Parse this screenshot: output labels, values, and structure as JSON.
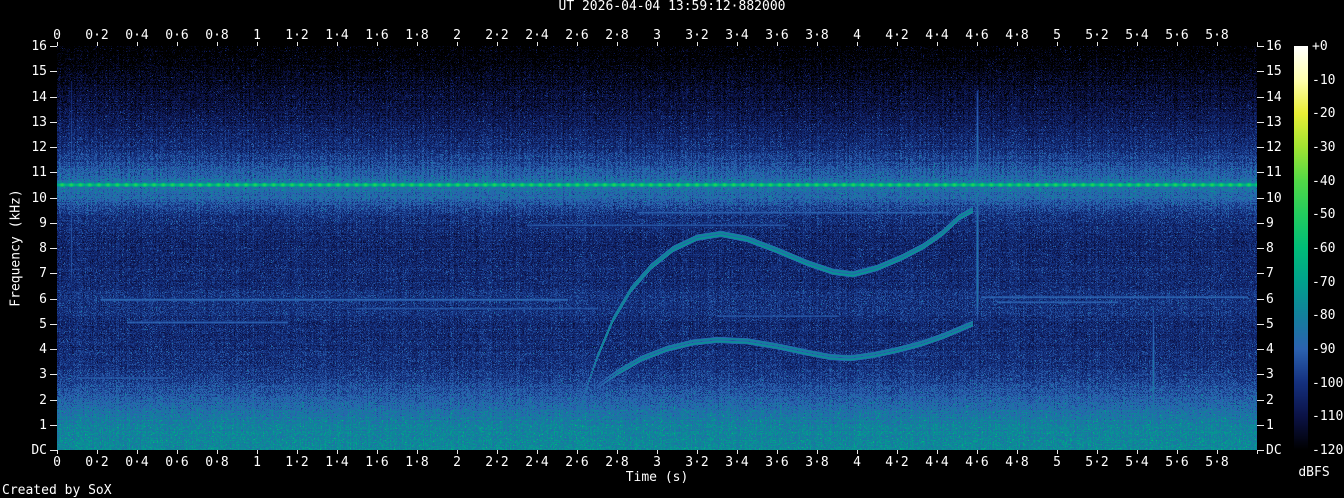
{
  "title": "UT 2026-04-04 13:59:12·882000",
  "footer": "Created by SoX",
  "axes": {
    "time": {
      "label": "Time (s)",
      "min": 0,
      "max": 6,
      "tick_step": 0.2,
      "tick_labels": [
        "0",
        "0·2",
        "0·4",
        "0·6",
        "0·8",
        "1",
        "1·2",
        "1·4",
        "1·6",
        "1·8",
        "2",
        "2·2",
        "2·4",
        "2·6",
        "2·8",
        "3",
        "3·2",
        "3·4",
        "3·6",
        "3·8",
        "4",
        "4·2",
        "4·4",
        "4·6",
        "4·8",
        "5",
        "5·2",
        "5·4",
        "5·6",
        "5·8"
      ]
    },
    "freq": {
      "label": "Frequency (kHz)",
      "min": 0,
      "max": 16,
      "tick_step": 1,
      "tick_labels": [
        "16",
        "15",
        "14",
        "13",
        "12",
        "11",
        "10",
        "9",
        "8",
        "7",
        "6",
        "5",
        "4",
        "3",
        "2",
        "1",
        "DC"
      ]
    },
    "colorbar": {
      "label": "dBFS",
      "min": -120,
      "max": 0,
      "tick_step": 10,
      "tick_labels": [
        "+0",
        "-10",
        "-20",
        "-30",
        "-40",
        "-50",
        "-60",
        "-70",
        "-80",
        "-90",
        "-100",
        "-110",
        "-120"
      ]
    }
  },
  "chart_data": {
    "type": "heatmap",
    "title": "UT 2026-04-04 13:59:12·882000",
    "xlabel": "Time (s)",
    "ylabel": "Frequency (kHz)",
    "zlabel": "dBFS",
    "xlim": [
      0,
      6
    ],
    "ylim": [
      0,
      16
    ],
    "zlim": [
      -120,
      0
    ],
    "palette_db_hex": [
      [
        -120,
        "#000000"
      ],
      [
        -110,
        "#0b1246"
      ],
      [
        -100,
        "#14307e"
      ],
      [
        -90,
        "#2b62b0"
      ],
      [
        -80,
        "#12809c"
      ],
      [
        -70,
        "#00a18c"
      ],
      [
        -60,
        "#00bd78"
      ],
      [
        -50,
        "#22cc5e"
      ],
      [
        -40,
        "#52d846"
      ],
      [
        -30,
        "#a2e432"
      ],
      [
        -20,
        "#e9ee36"
      ],
      [
        -10,
        "#ffffb0"
      ],
      [
        0,
        "#ffffff"
      ]
    ],
    "background_profile_khz_db": [
      [
        0,
        -78
      ],
      [
        0.7,
        -79
      ],
      [
        1.2,
        -82
      ],
      [
        1.8,
        -88
      ],
      [
        2.4,
        -94
      ],
      [
        3,
        -99
      ],
      [
        4,
        -102
      ],
      [
        5,
        -102
      ],
      [
        5.9,
        -99
      ],
      [
        6.5,
        -102
      ],
      [
        7.5,
        -103
      ],
      [
        8.5,
        -103
      ],
      [
        9.3,
        -100
      ],
      [
        9.8,
        -94
      ],
      [
        10.2,
        -89
      ],
      [
        10.5,
        -86
      ],
      [
        10.8,
        -91
      ],
      [
        11.3,
        -97
      ],
      [
        12,
        -103
      ],
      [
        13,
        -108
      ],
      [
        14,
        -113
      ],
      [
        15,
        -118
      ],
      [
        16,
        -122
      ]
    ],
    "noise_jitter_db": 9,
    "features": {
      "pulse_train": {
        "freq_khz": 10.5,
        "period_s": 0.046,
        "peak_db": -48,
        "between_db": -66,
        "sideband_khz": 10.0,
        "sideband_peak_db": -82
      },
      "comb": {
        "khz_lo": 9.2,
        "khz_hi": 14.8,
        "boost_db": 6,
        "decay_khz": 2.2
      },
      "whistles": [
        {
          "db": -74,
          "points": [
            [
              2.6,
              1.3
            ],
            [
              2.7,
              3.6
            ],
            [
              2.78,
              5.1
            ],
            [
              2.87,
              6.3
            ],
            [
              2.97,
              7.2
            ],
            [
              3.08,
              7.9
            ],
            [
              3.2,
              8.35
            ],
            [
              3.32,
              8.5
            ],
            [
              3.45,
              8.3
            ],
            [
              3.6,
              7.85
            ],
            [
              3.75,
              7.35
            ],
            [
              3.88,
              7.0
            ],
            [
              3.98,
              6.9
            ],
            [
              4.1,
              7.15
            ],
            [
              4.22,
              7.55
            ],
            [
              4.33,
              8.0
            ],
            [
              4.43,
              8.55
            ],
            [
              4.51,
              9.15
            ],
            [
              4.58,
              9.45
            ]
          ]
        },
        {
          "db": -76,
          "points": [
            [
              2.7,
              2.45
            ],
            [
              2.8,
              3.0
            ],
            [
              2.92,
              3.55
            ],
            [
              3.05,
              3.95
            ],
            [
              3.18,
              4.2
            ],
            [
              3.3,
              4.3
            ],
            [
              3.45,
              4.25
            ],
            [
              3.6,
              4.05
            ],
            [
              3.75,
              3.8
            ],
            [
              3.87,
              3.62
            ],
            [
              3.97,
              3.58
            ],
            [
              4.08,
              3.7
            ],
            [
              4.2,
              3.9
            ],
            [
              4.32,
              4.15
            ],
            [
              4.43,
              4.45
            ],
            [
              4.52,
              4.75
            ],
            [
              4.58,
              4.95
            ]
          ]
        }
      ],
      "vertical_events": [
        {
          "t": 0.07,
          "khz_lo": 6.2,
          "khz_hi": 14.6,
          "db": -94
        },
        {
          "t": 4.6,
          "khz_lo": 5.1,
          "khz_hi": 14.2,
          "db": -84
        },
        {
          "t": 5.48,
          "khz_lo": 0.0,
          "khz_hi": 5.7,
          "db": -84
        }
      ],
      "streaks": [
        {
          "t0": 0.22,
          "t1": 2.55,
          "khz": 5.95,
          "db": -89
        },
        {
          "t0": 0.35,
          "t1": 1.15,
          "khz": 5.05,
          "db": -91
        },
        {
          "t0": 1.5,
          "t1": 2.7,
          "khz": 5.6,
          "db": -93
        },
        {
          "t0": 2.35,
          "t1": 3.65,
          "khz": 8.9,
          "db": -93
        },
        {
          "t0": 2.9,
          "t1": 4.45,
          "khz": 9.4,
          "db": -91
        },
        {
          "t0": 4.62,
          "t1": 5.95,
          "khz": 6.05,
          "db": -90
        },
        {
          "t0": 4.7,
          "t1": 5.3,
          "khz": 5.85,
          "db": -91
        },
        {
          "t0": 0.1,
          "t1": 0.55,
          "khz": 2.85,
          "db": -92
        },
        {
          "t0": 3.3,
          "t1": 3.9,
          "khz": 5.3,
          "db": -93
        }
      ]
    }
  }
}
